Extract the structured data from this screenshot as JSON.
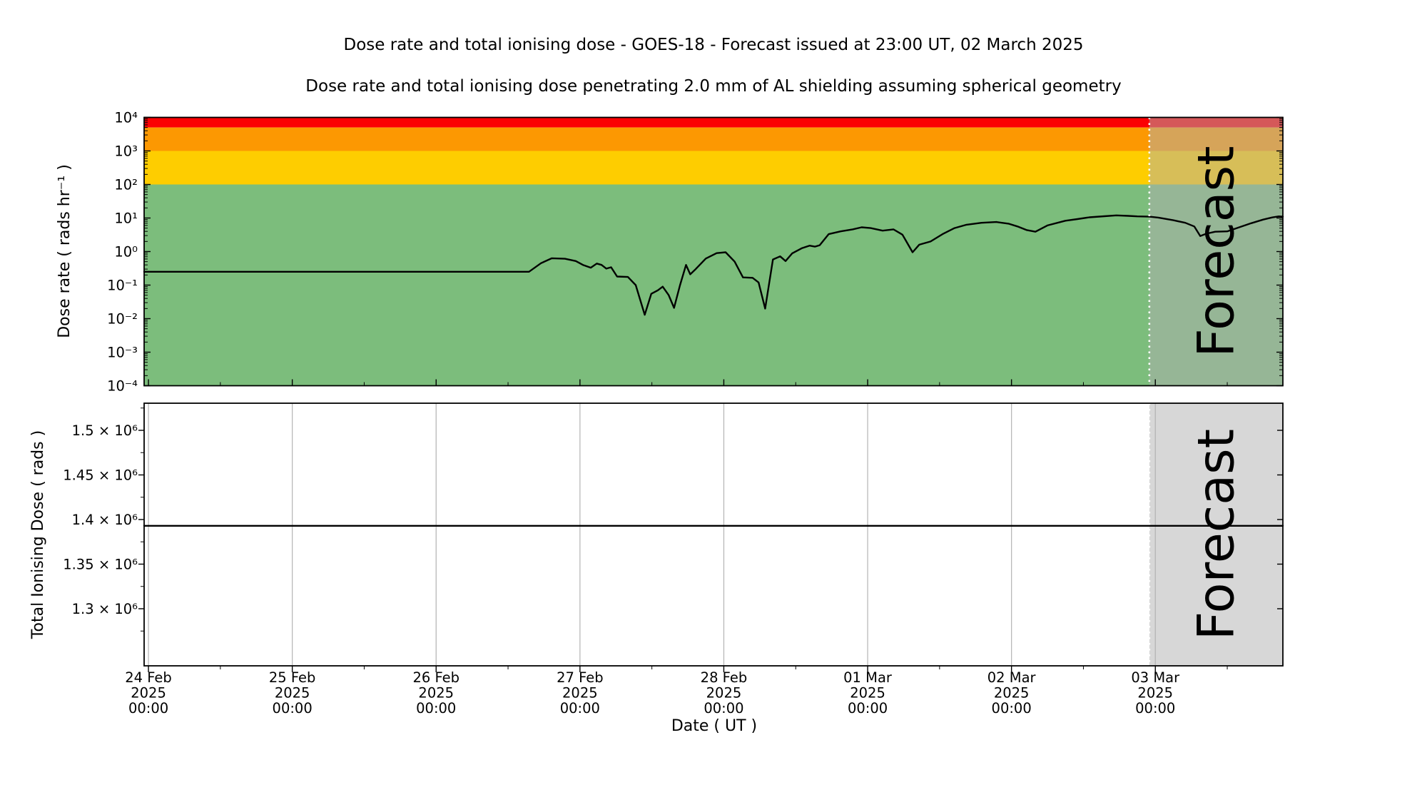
{
  "figure": {
    "title": "Dose rate and total ionising dose - GOES-18 - Forecast issued at 23:00 UT, 02 March 2025",
    "subtitle": "Dose rate and total ionising dose penetrating 2.0 mm of AL shielding assuming spherical geometry",
    "background_color": "#ffffff"
  },
  "xaxis": {
    "label": "Date ( UT )",
    "lim_hours": [
      -0.72,
      189.28
    ],
    "major_ticks": [
      {
        "hours": 0,
        "label_lines": [
          "24 Feb",
          "2025",
          "00:00"
        ]
      },
      {
        "hours": 24,
        "label_lines": [
          "25 Feb",
          "2025",
          "00:00"
        ]
      },
      {
        "hours": 48,
        "label_lines": [
          "26 Feb",
          "2025",
          "00:00"
        ]
      },
      {
        "hours": 72,
        "label_lines": [
          "27 Feb",
          "2025",
          "00:00"
        ]
      },
      {
        "hours": 96,
        "label_lines": [
          "28 Feb",
          "2025",
          "00:00"
        ]
      },
      {
        "hours": 120,
        "label_lines": [
          "01 Mar",
          "2025",
          "00:00"
        ]
      },
      {
        "hours": 144,
        "label_lines": [
          "02 Mar",
          "2025",
          "00:00"
        ]
      },
      {
        "hours": 168,
        "label_lines": [
          "03 Mar",
          "2025",
          "00:00"
        ]
      }
    ],
    "minor_tick_hours": [
      12,
      36,
      60,
      84,
      108,
      132,
      156,
      180
    ]
  },
  "forecast": {
    "label": "Forecast",
    "start_hours": 167,
    "divider_color": "#ffffff",
    "overlay_color": "rgba(175,175,175,0.5)",
    "watermark_color": "rgba(128,128,128,0.55)"
  },
  "chart_data": [
    {
      "type": "line",
      "panel": "dose-rate",
      "ylabel": "Dose rate ( rads hr⁻¹ )",
      "yscale": "log",
      "ylim": [
        0.0001,
        10000
      ],
      "grid": false,
      "yticks": [
        {
          "value": 10000,
          "label": "10⁴"
        },
        {
          "value": 1000,
          "label": "10³"
        },
        {
          "value": 100,
          "label": "10²"
        },
        {
          "value": 10,
          "label": "10¹"
        },
        {
          "value": 1,
          "label": "10⁰"
        },
        {
          "value": 0.1,
          "label": "10⁻¹"
        },
        {
          "value": 0.01,
          "label": "10⁻²"
        },
        {
          "value": 0.001,
          "label": "10⁻³"
        },
        {
          "value": 0.0001,
          "label": "10⁻⁴"
        }
      ],
      "bands": [
        {
          "name": "red-alert",
          "from": 5000,
          "to": 10000,
          "color": "#fb0003"
        },
        {
          "name": "orange-warning",
          "from": 1000,
          "to": 5000,
          "color": "#fc9802"
        },
        {
          "name": "yellow-watch",
          "from": 100,
          "to": 1000,
          "color": "#fecd00"
        },
        {
          "name": "green-quiet",
          "from": 0.0001,
          "to": 100,
          "color": "#7cbd7c"
        }
      ],
      "series": [
        {
          "name": "dose-rate-goes18",
          "color": "#000000",
          "points": [
            [
              -0.72,
              0.25
            ],
            [
              63.5,
              0.25
            ],
            [
              65.5,
              0.45
            ],
            [
              67.3,
              0.63
            ],
            [
              69.5,
              0.61
            ],
            [
              71.3,
              0.52
            ],
            [
              72.5,
              0.4
            ],
            [
              73.8,
              0.33
            ],
            [
              74.8,
              0.44
            ],
            [
              75.6,
              0.4
            ],
            [
              76.4,
              0.31
            ],
            [
              77.2,
              0.34
            ],
            [
              78.2,
              0.18
            ],
            [
              80.0,
              0.175
            ],
            [
              81.3,
              0.1
            ],
            [
              82.8,
              0.013
            ],
            [
              83.9,
              0.055
            ],
            [
              85.0,
              0.07
            ],
            [
              85.8,
              0.09
            ],
            [
              86.8,
              0.05
            ],
            [
              87.7,
              0.021
            ],
            [
              88.7,
              0.1
            ],
            [
              89.7,
              0.4
            ],
            [
              90.4,
              0.21
            ],
            [
              91.3,
              0.3
            ],
            [
              93.0,
              0.62
            ],
            [
              94.8,
              0.9
            ],
            [
              96.3,
              0.95
            ],
            [
              97.8,
              0.5
            ],
            [
              99.2,
              0.17
            ],
            [
              100.8,
              0.165
            ],
            [
              101.8,
              0.12
            ],
            [
              102.9,
              0.02
            ],
            [
              104.2,
              0.58
            ],
            [
              105.4,
              0.72
            ],
            [
              106.3,
              0.52
            ],
            [
              107.4,
              0.88
            ],
            [
              109.0,
              1.25
            ],
            [
              110.3,
              1.5
            ],
            [
              111.2,
              1.4
            ],
            [
              112.0,
              1.55
            ],
            [
              113.5,
              3.3
            ],
            [
              115.5,
              4.0
            ],
            [
              117.5,
              4.6
            ],
            [
              119.0,
              5.3
            ],
            [
              120.5,
              5.0
            ],
            [
              122.5,
              4.2
            ],
            [
              124.3,
              4.6
            ],
            [
              125.8,
              3.2
            ],
            [
              127.5,
              0.95
            ],
            [
              128.6,
              1.6
            ],
            [
              130.5,
              2.0
            ],
            [
              132.5,
              3.3
            ],
            [
              134.5,
              5.0
            ],
            [
              136.5,
              6.3
            ],
            [
              139.0,
              7.2
            ],
            [
              141.5,
              7.6
            ],
            [
              143.5,
              6.8
            ],
            [
              145.0,
              5.6
            ],
            [
              146.5,
              4.4
            ],
            [
              148.0,
              3.9
            ],
            [
              150.0,
              6.0
            ],
            [
              153.0,
              8.3
            ],
            [
              155.0,
              9.3
            ],
            [
              157.0,
              10.5
            ],
            [
              159.5,
              11.3
            ],
            [
              161.5,
              12.0
            ],
            [
              163.5,
              11.6
            ],
            [
              165.0,
              11.2
            ],
            [
              167.0,
              11.0
            ],
            [
              168.5,
              10.3
            ],
            [
              171.0,
              8.6
            ],
            [
              173.0,
              7.2
            ],
            [
              174.5,
              5.6
            ],
            [
              175.5,
              2.9
            ],
            [
              176.5,
              3.4
            ],
            [
              178.0,
              3.9
            ],
            [
              180.0,
              4.0
            ],
            [
              182.0,
              5.3
            ],
            [
              184.0,
              7.0
            ],
            [
              186.0,
              9.0
            ],
            [
              187.5,
              10.4
            ],
            [
              188.6,
              11.2
            ],
            [
              189.28,
              11.0
            ]
          ]
        }
      ]
    },
    {
      "type": "line",
      "panel": "total-ionising-dose",
      "ylabel": "Total Ionising Dose ( rads )",
      "yscale": "linear",
      "ylim": [
        1236000,
        1530400
      ],
      "grid": true,
      "grid_color": "#b9b9b9",
      "yticks": [
        {
          "value": 1500000,
          "label": "1.5 × 10⁶"
        },
        {
          "value": 1450000,
          "label": "1.45 × 10⁶"
        },
        {
          "value": 1400000,
          "label": "1.4 × 10⁶"
        },
        {
          "value": 1350000,
          "label": "1.35 × 10⁶"
        },
        {
          "value": 1300000,
          "label": "1.3 × 10⁶"
        }
      ],
      "series": [
        {
          "name": "total-ionising-dose-goes18",
          "color": "#000000",
          "points": [
            [
              -0.72,
              1393000
            ],
            [
              189.28,
              1393000
            ]
          ]
        }
      ]
    }
  ]
}
